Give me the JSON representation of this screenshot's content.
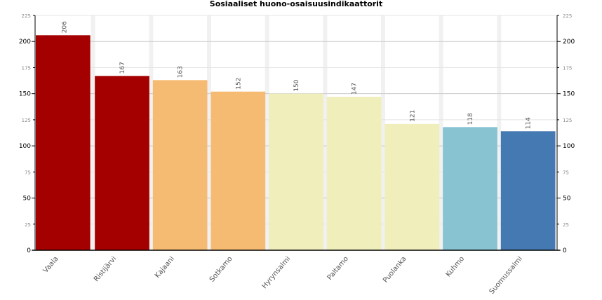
{
  "chart_data": {
    "type": "bar",
    "title": "Sosiaaliset huono-osaisuusindikaattorit",
    "xlabel": "",
    "ylabel": "",
    "ylim": [
      0,
      225
    ],
    "yticks_major": [
      0,
      50,
      100,
      150,
      200
    ],
    "yticks_minor": [
      25,
      75,
      125,
      175,
      225
    ],
    "grid": true,
    "categories": [
      "Vaala",
      "Ristijärvi",
      "Kajaani",
      "Sotkamo",
      "Hyrynsalmi",
      "Paltamo",
      "Puolanka",
      "Kuhmo",
      "Suomussalmi"
    ],
    "values": [
      206,
      167,
      163,
      152,
      150,
      147,
      121,
      118,
      114
    ],
    "colors": [
      "#a50000",
      "#a50000",
      "#f5bb72",
      "#f5bb72",
      "#f0eebb",
      "#f0eebb",
      "#f0eebb",
      "#88c3d2",
      "#4479b1"
    ]
  }
}
